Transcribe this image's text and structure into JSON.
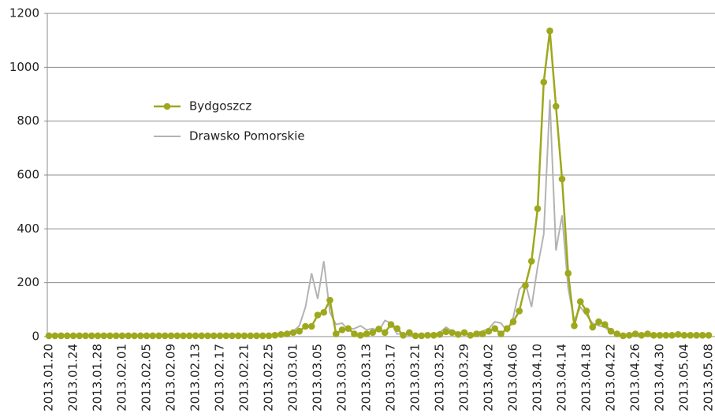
{
  "chart_data": {
    "type": "line",
    "categories": [
      "2013.01.20",
      null,
      null,
      null,
      "2013.01.24",
      null,
      null,
      null,
      "2013.01.28",
      null,
      null,
      null,
      "2013.02.01",
      null,
      null,
      null,
      "2013.02.05",
      null,
      null,
      null,
      "2013.02.09",
      null,
      null,
      null,
      "2013.02.13",
      null,
      null,
      null,
      "2013.02.17",
      null,
      null,
      null,
      "2013.02.21",
      null,
      null,
      null,
      "2013.02.25",
      null,
      null,
      null,
      "2013.03.01",
      null,
      null,
      null,
      "2013.03.05",
      null,
      null,
      null,
      "2013.03.09",
      null,
      null,
      null,
      "2013.03.13",
      null,
      null,
      null,
      "2013.03.17",
      null,
      null,
      null,
      "2013.03.21",
      null,
      null,
      null,
      "2013.03.25",
      null,
      null,
      null,
      "2013.03.29",
      null,
      null,
      null,
      "2013.04.02",
      null,
      null,
      null,
      "2013.04.06",
      null,
      null,
      null,
      "2013.04.10",
      null,
      null,
      null,
      "2013.04.14",
      null,
      null,
      null,
      "2013.04.18",
      null,
      null,
      null,
      "2013.04.22",
      null,
      null,
      null,
      "2013.04.26",
      null,
      null,
      null,
      "2013.04.30",
      null,
      null,
      null,
      "2013.05.04",
      null,
      null,
      null,
      "2013.05.08"
    ],
    "series": [
      {
        "name": "Bydgoszcz",
        "color": "#9ea81c",
        "markers": true,
        "values": [
          3,
          3,
          3,
          3,
          3,
          3,
          3,
          3,
          3,
          3,
          3,
          3,
          3,
          3,
          3,
          3,
          3,
          3,
          3,
          3,
          3,
          3,
          3,
          3,
          3,
          3,
          3,
          3,
          3,
          3,
          3,
          3,
          3,
          3,
          3,
          3,
          3,
          5,
          8,
          10,
          15,
          20,
          38,
          38,
          80,
          90,
          135,
          10,
          25,
          30,
          10,
          5,
          10,
          15,
          28,
          15,
          45,
          30,
          5,
          15,
          3,
          3,
          5,
          5,
          8,
          18,
          15,
          8,
          15,
          5,
          10,
          10,
          20,
          30,
          10,
          30,
          55,
          95,
          190,
          280,
          475,
          945,
          1135,
          855,
          585,
          235,
          40,
          130,
          95,
          35,
          55,
          45,
          20,
          10,
          3,
          5,
          10,
          5,
          10,
          5,
          5,
          5,
          5,
          8,
          5,
          5,
          5,
          5,
          5
        ]
      },
      {
        "name": "Drawsko Pomorskie",
        "color": "#b3b3b3",
        "markers": false,
        "values": [
          3,
          3,
          3,
          3,
          3,
          3,
          3,
          3,
          3,
          3,
          3,
          3,
          3,
          3,
          3,
          3,
          3,
          3,
          3,
          3,
          3,
          3,
          3,
          3,
          3,
          3,
          3,
          3,
          3,
          3,
          3,
          3,
          3,
          3,
          3,
          3,
          3,
          3,
          10,
          15,
          20,
          40,
          110,
          235,
          140,
          280,
          90,
          45,
          50,
          25,
          30,
          40,
          25,
          30,
          20,
          60,
          50,
          10,
          10,
          5,
          5,
          5,
          5,
          8,
          15,
          35,
          20,
          15,
          10,
          5,
          15,
          20,
          30,
          55,
          50,
          20,
          70,
          175,
          200,
          110,
          260,
          380,
          880,
          320,
          450,
          180,
          60,
          110,
          80,
          50,
          40,
          35,
          15,
          8,
          5,
          5,
          8,
          5,
          8,
          5,
          5,
          5,
          5,
          5,
          5,
          5,
          5,
          5,
          5
        ]
      }
    ],
    "ylim": [
      0,
      1200
    ],
    "yticks": [
      0,
      200,
      400,
      600,
      800,
      1000,
      1200
    ],
    "grid": true,
    "legend": "upper left"
  }
}
